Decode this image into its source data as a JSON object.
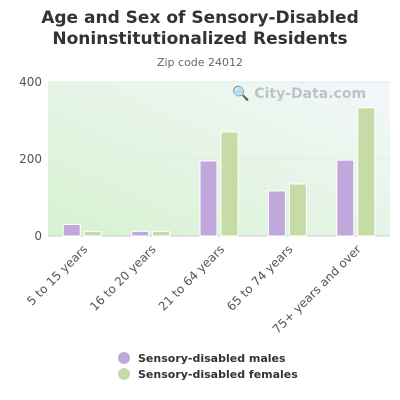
{
  "title": "Age and Sex of Sensory-Disabled Noninstitutionalized Residents",
  "subtitle": "Zip code 24012",
  "watermark": "City-Data.com",
  "colors": {
    "males": "#c0a8dc",
    "females": "#c6dba6",
    "axis_text": "#555555",
    "bg_top": "#f4f7fb",
    "bg_bottom": "#d6f2d0"
  },
  "legend": {
    "males": "Sensory-disabled males",
    "females": "Sensory-disabled females"
  },
  "chart_data": {
    "type": "bar",
    "categories": [
      "5 to 15 years",
      "16 to 20 years",
      "21 to 64 years",
      "65 to 74 years",
      "75+ years and over"
    ],
    "series": [
      {
        "name": "Sensory-disabled males",
        "values": [
          30,
          12,
          195,
          117,
          197
        ]
      },
      {
        "name": "Sensory-disabled females",
        "values": [
          12,
          12,
          270,
          135,
          333
        ]
      }
    ],
    "yticks": [
      0,
      200,
      400
    ],
    "ylim": [
      0,
      400
    ],
    "grid": true,
    "legend_position": "bottom"
  }
}
